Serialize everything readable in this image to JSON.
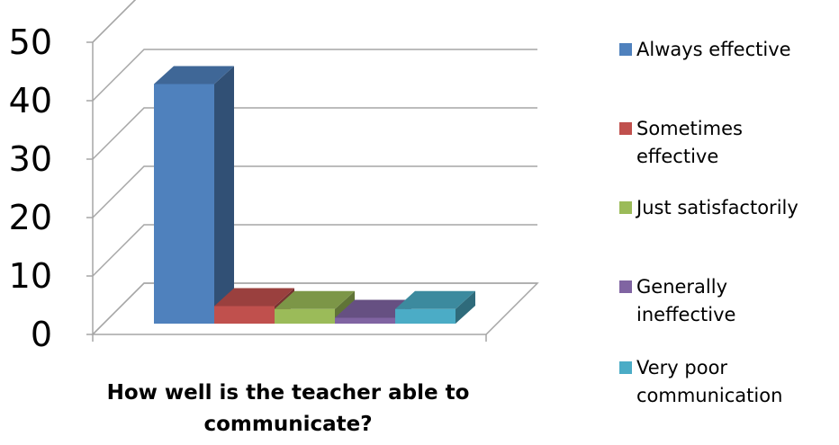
{
  "chart_data": {
    "type": "bar",
    "title": "",
    "xlabel": "How well is the teacher able to communicate?",
    "ylabel": "",
    "yticks": [
      0,
      10,
      20,
      30,
      40,
      50
    ],
    "ylim": [
      0,
      50
    ],
    "grid": true,
    "legend_position": "right",
    "series": [
      {
        "name": "Always effective",
        "values": [
          41
        ],
        "color": "#4F81BD"
      },
      {
        "name": "Sometimes effective",
        "values": [
          3
        ],
        "color": "#C0504D"
      },
      {
        "name": "Just satisfactorily",
        "values": [
          2.5
        ],
        "color": "#9BBB59"
      },
      {
        "name": "Generally ineffective",
        "values": [
          1
        ],
        "color": "#8064A2"
      },
      {
        "name": "Very poor communication",
        "values": [
          2.5
        ],
        "color": "#4BACC6"
      }
    ]
  }
}
